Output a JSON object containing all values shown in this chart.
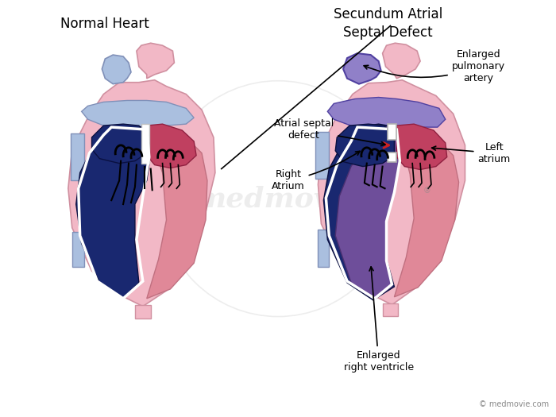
{
  "bg_color": "#ffffff",
  "title_left": "Normal Heart",
  "title_right": "Secundum Atrial\nSeptal Defect",
  "labels": {
    "atrial_septal_defect": "Atrial septal\ndefect",
    "right_atrium": "Right\nAtrium",
    "enlarged_pulmonary": "Enlarged\npulmonary\nartery",
    "left_atrium": "Left\natrium",
    "enlarged_right_ventricle": "Enlarged\nright ventricle"
  },
  "watermark": "medmovie",
  "copyright": "© medmovie.com",
  "colors": {
    "skin_pink": "#f2b8c6",
    "mid_pink": "#e08898",
    "dark_red": "#c04060",
    "light_blue": "#aabfdf",
    "dark_blue": "#192870",
    "purple": "#6e4e9a",
    "light_purple": "#9080c8",
    "white": "#ffffff",
    "gray_circle": "#cccccc",
    "outline_pink": "#d090a0",
    "outline_blue": "#8090b8"
  }
}
